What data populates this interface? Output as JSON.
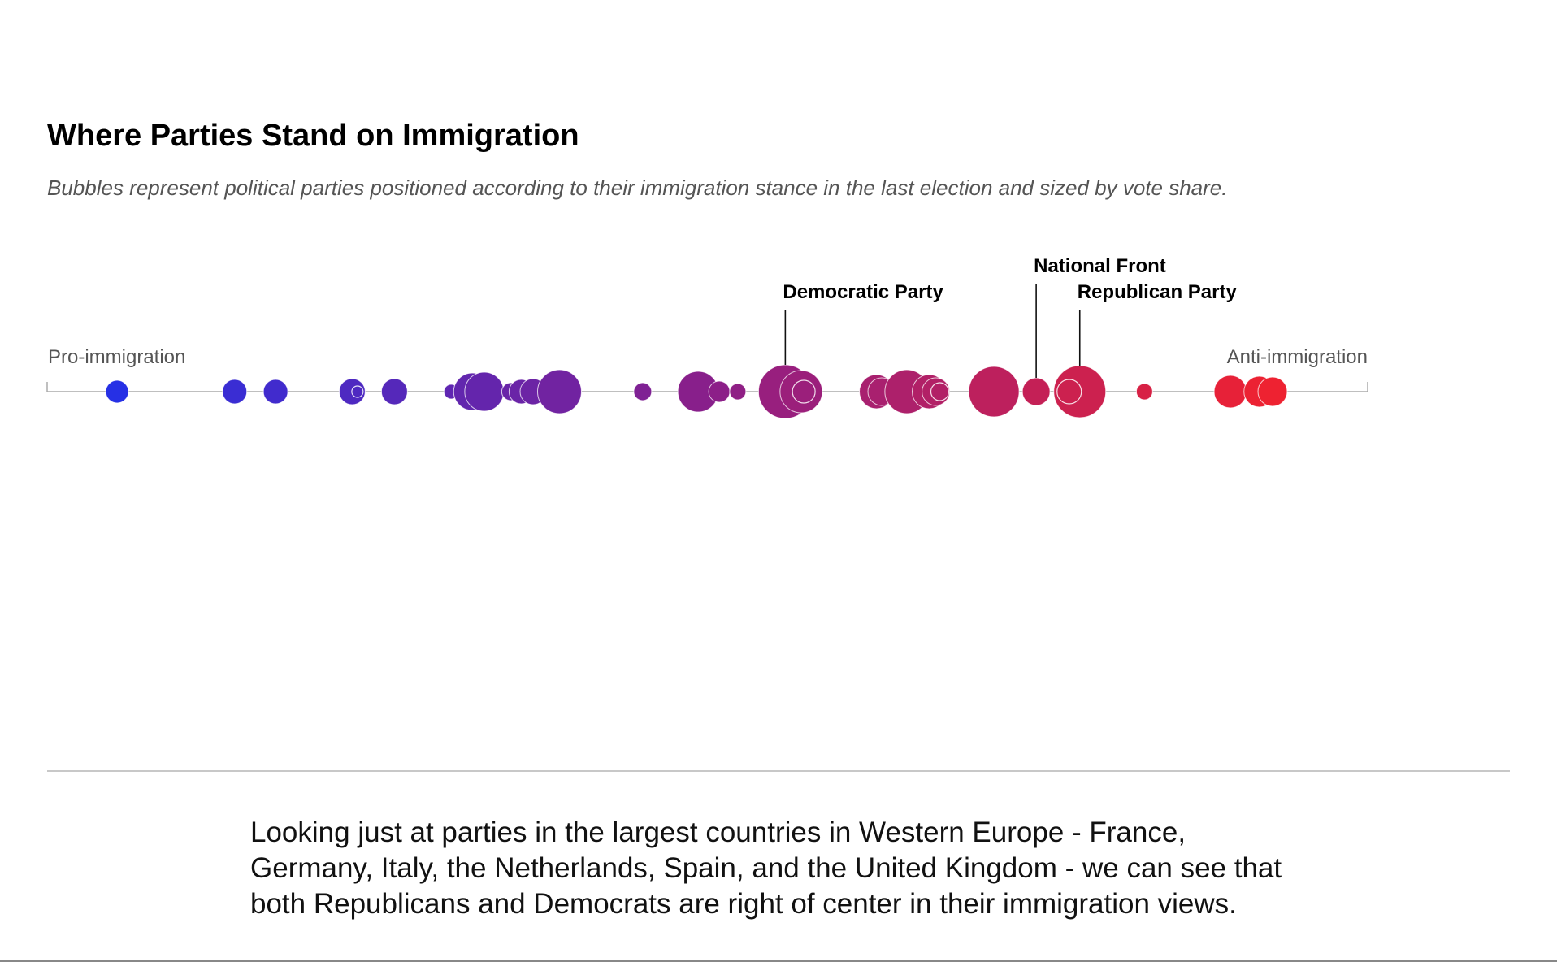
{
  "header": {
    "title": "Where Parties Stand on Immigration",
    "subtitle": "Bubbles represent political parties positioned according to their immigration stance in the last election and sized by vote share."
  },
  "chart_data": {
    "type": "scatter",
    "title": "Where Parties Stand on Immigration",
    "axis": {
      "left_label": "Pro-immigration",
      "right_label": "Anti-immigration",
      "xlim": [
        0,
        100
      ]
    },
    "grid": false,
    "color_scale": {
      "low": "#1a32f0",
      "mid": "#8a1f8a",
      "high": "#ff2222"
    },
    "points": [
      {
        "x": 5.3,
        "r": 14
      },
      {
        "x": 14.2,
        "r": 15
      },
      {
        "x": 17.3,
        "r": 15
      },
      {
        "x": 23.1,
        "r": 16
      },
      {
        "x": 23.5,
        "r": 7,
        "outline": true
      },
      {
        "x": 26.3,
        "r": 16
      },
      {
        "x": 30.6,
        "r": 9
      },
      {
        "x": 32.2,
        "r": 23
      },
      {
        "x": 33.1,
        "r": 24
      },
      {
        "x": 35.1,
        "r": 11
      },
      {
        "x": 35.9,
        "r": 15
      },
      {
        "x": 36.8,
        "r": 16
      },
      {
        "x": 38.8,
        "r": 27
      },
      {
        "x": 45.1,
        "r": 11
      },
      {
        "x": 49.3,
        "r": 25
      },
      {
        "x": 50.9,
        "r": 13
      },
      {
        "x": 52.3,
        "r": 10
      },
      {
        "x": 55.9,
        "r": 33
      },
      {
        "x": 57.1,
        "r": 26
      },
      {
        "x": 57.3,
        "r": 14,
        "outline": true
      },
      {
        "x": 62.8,
        "r": 21
      },
      {
        "x": 63.2,
        "r": 17
      },
      {
        "x": 65.1,
        "r": 27
      },
      {
        "x": 66.8,
        "r": 21
      },
      {
        "x": 67.3,
        "r": 17
      },
      {
        "x": 67.6,
        "r": 11,
        "outline": true
      },
      {
        "x": 71.7,
        "r": 31
      },
      {
        "x": 74.9,
        "r": 17
      },
      {
        "x": 78.2,
        "r": 32
      },
      {
        "x": 77.4,
        "r": 15,
        "outline": true
      },
      {
        "x": 83.1,
        "r": 10
      },
      {
        "x": 89.6,
        "r": 20
      },
      {
        "x": 91.8,
        "r": 19
      },
      {
        "x": 92.8,
        "r": 18
      }
    ],
    "annotations": [
      {
        "label": "Democratic Party",
        "x": 55.9
      },
      {
        "label": "National Front",
        "x": 74.9
      },
      {
        "label": "Republican Party",
        "x": 78.2
      }
    ]
  },
  "body_text": "Looking just at parties in the largest countries in Western Europe - France, Germany, Italy, the Netherlands, Spain, and the United Kingdom - we can see that both Republicans and Democrats are right of center in their immigration views."
}
